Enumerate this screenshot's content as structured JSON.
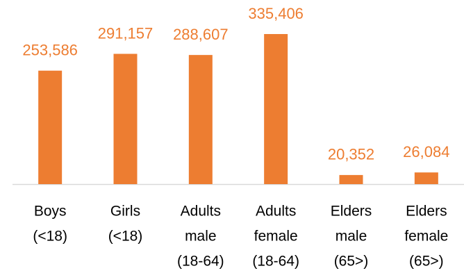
{
  "chart_data": {
    "type": "bar",
    "categories": [
      [
        "Boys",
        "(<18)"
      ],
      [
        "Girls",
        "(<18)"
      ],
      [
        "Adults",
        "male",
        "(18-64)"
      ],
      [
        "Adults",
        "female",
        "(18-64)"
      ],
      [
        "Elders",
        "male",
        "(65>)"
      ],
      [
        "Elders",
        "female",
        "(65>)"
      ]
    ],
    "values": [
      253586,
      291157,
      288607,
      335406,
      20352,
      26084
    ],
    "value_labels": [
      "253,586",
      "291,157",
      "288,607",
      "335,406",
      "20,352",
      "26,084"
    ],
    "color": "#ed7d31"
  }
}
